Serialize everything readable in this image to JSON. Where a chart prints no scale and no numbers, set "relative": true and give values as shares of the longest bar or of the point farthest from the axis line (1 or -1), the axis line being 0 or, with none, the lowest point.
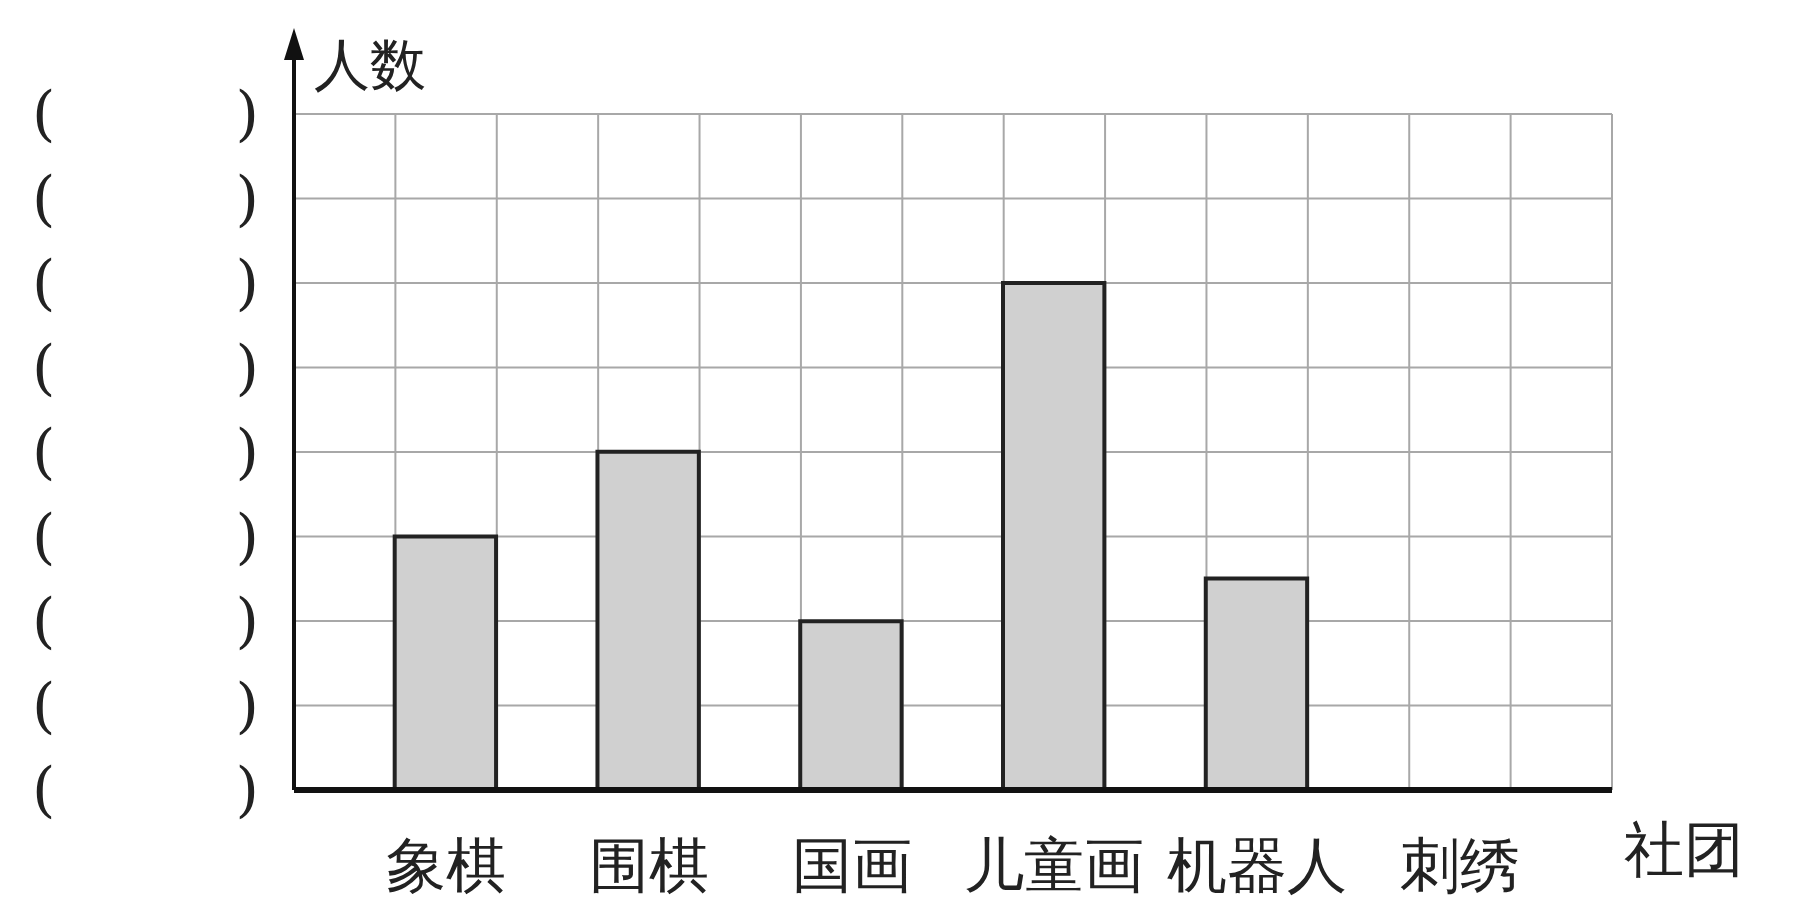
{
  "chart_data": {
    "type": "bar",
    "xlabel": "社团",
    "ylabel": "人数",
    "categories": [
      "象棋",
      "围棋",
      "国画",
      "儿童画",
      "机器人",
      "刺绣"
    ],
    "values": [
      0.5,
      0.667,
      0.333,
      1,
      0.417,
      0
    ],
    "color": "#d0d0d0",
    "relative": true,
    "annotations": [
      "(　　　)",
      "(　　　)",
      "(　　　)",
      "(　　　)",
      "(　　　)",
      "(　　　)",
      "(　　　)",
      "(　　　)",
      "(　　　)"
    ],
    "grid": true
  }
}
